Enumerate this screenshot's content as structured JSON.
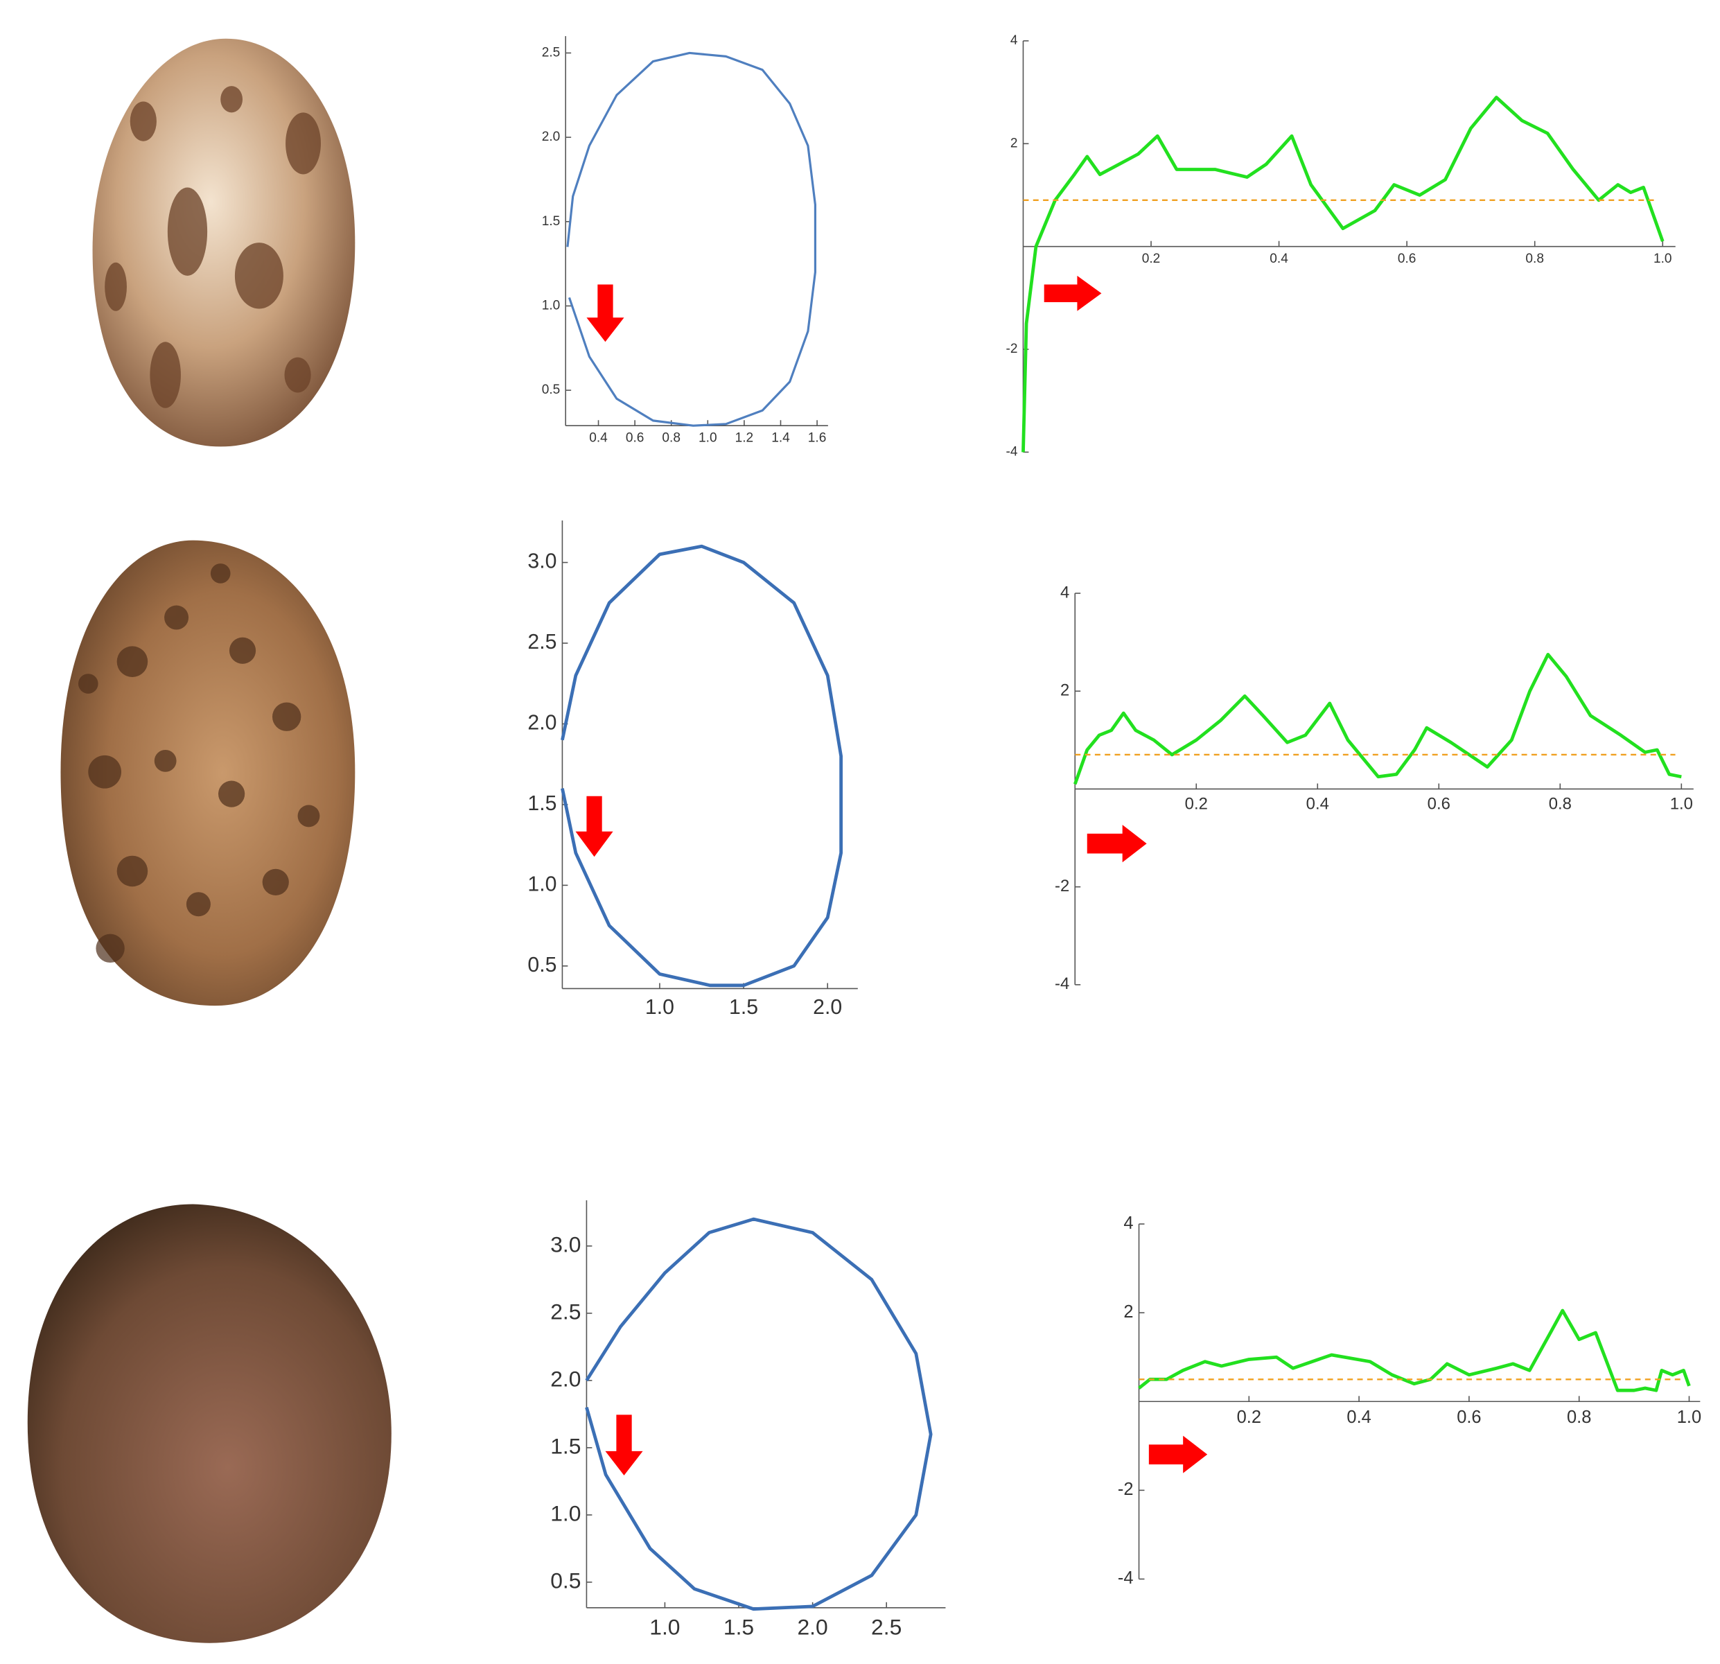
{
  "chart_data": [
    {
      "type": "line",
      "color": "#4f7fbf",
      "x": [
        0.24,
        0.35,
        0.5,
        0.7,
        0.92,
        1.1,
        1.3,
        1.45,
        1.55,
        1.59,
        1.59,
        1.55,
        1.45,
        1.3,
        1.1,
        0.9,
        0.7,
        0.5,
        0.35,
        0.26,
        0.23
      ],
      "values": [
        1.05,
        0.7,
        0.45,
        0.32,
        0.29,
        0.3,
        0.38,
        0.55,
        0.85,
        1.2,
        1.6,
        1.95,
        2.2,
        2.4,
        2.48,
        2.5,
        2.45,
        2.25,
        1.95,
        1.65,
        1.35
      ],
      "xlim": [
        0.22,
        1.66
      ],
      "ylim": [
        0.29,
        2.6
      ],
      "xticks": [
        0.4,
        0.6,
        0.8,
        {
          "value": 1.0,
          "label": "1.0"
        },
        1.2,
        1.4,
        1.6
      ],
      "yticks": [
        0.5,
        {
          "value": 1.0,
          "label": "1.0"
        },
        1.5,
        {
          "value": 2.0,
          "label": "2.0"
        },
        2.5
      ]
    },
    {
      "type": "line",
      "series": [
        {
          "color": "#22e01f",
          "x": [
            0,
            0.005,
            0.02,
            0.05,
            0.08,
            0.1,
            0.12,
            0.15,
            0.18,
            0.21,
            0.24,
            0.3,
            0.35,
            0.38,
            0.42,
            0.45,
            0.5,
            0.55,
            0.58,
            0.62,
            0.66,
            0.7,
            0.74,
            0.78,
            0.82,
            0.86,
            0.9,
            0.93,
            0.95,
            0.97,
            1.0
          ],
          "values": [
            -4,
            -1.5,
            0,
            0.9,
            1.4,
            1.75,
            1.4,
            1.6,
            1.8,
            2.15,
            1.5,
            1.5,
            1.35,
            1.6,
            2.15,
            1.2,
            0.35,
            0.7,
            1.2,
            1.0,
            1.3,
            2.3,
            2.9,
            2.45,
            2.2,
            1.5,
            0.9,
            1.2,
            1.05,
            1.15,
            0.1
          ]
        },
        {
          "color": "#f0a020",
          "linestyle": "dashed",
          "x": [
            0,
            0.99
          ],
          "values": [
            0.9,
            0.9
          ]
        }
      ],
      "xlim": [
        0,
        1.02
      ],
      "ylim": [
        -4,
        4
      ],
      "xticks": [
        0.2,
        0.4,
        0.6,
        0.8,
        {
          "value": 1.0,
          "label": "1.0"
        }
      ],
      "yticks": [
        -4,
        -2,
        2,
        4
      ]
    },
    {
      "type": "line",
      "color": "#3b6fb5",
      "x": [
        0.42,
        0.5,
        0.7,
        1.0,
        1.25,
        1.5,
        1.8,
        2.0,
        2.08,
        2.08,
        2.0,
        1.8,
        1.5,
        1.3,
        1.0,
        0.7,
        0.5,
        0.42
      ],
      "values": [
        1.9,
        2.3,
        2.75,
        3.05,
        3.1,
        3.0,
        2.75,
        2.3,
        1.8,
        1.2,
        0.8,
        0.5,
        0.38,
        0.38,
        0.45,
        0.75,
        1.2,
        1.6
      ],
      "xlim": [
        0.42,
        2.18
      ],
      "ylim": [
        0.36,
        3.26
      ],
      "xticks": [
        {
          "value": 1.0,
          "label": "1.0"
        },
        1.5,
        {
          "value": 2.0,
          "label": "2.0"
        }
      ],
      "yticks": [
        0.5,
        {
          "value": 1.0,
          "label": "1.0"
        },
        1.5,
        {
          "value": 2.0,
          "label": "2.0"
        },
        2.5,
        {
          "value": 3.0,
          "label": "3.0"
        }
      ]
    },
    {
      "type": "line",
      "series": [
        {
          "color": "#22e01f",
          "x": [
            0,
            0.02,
            0.04,
            0.06,
            0.08,
            0.1,
            0.13,
            0.16,
            0.2,
            0.24,
            0.28,
            0.31,
            0.35,
            0.38,
            0.42,
            0.45,
            0.5,
            0.53,
            0.56,
            0.58,
            0.62,
            0.68,
            0.72,
            0.75,
            0.78,
            0.81,
            0.85,
            0.9,
            0.94,
            0.96,
            0.98,
            1.0
          ],
          "values": [
            0.1,
            0.8,
            1.1,
            1.2,
            1.55,
            1.2,
            1.0,
            0.7,
            1.0,
            1.4,
            1.9,
            1.5,
            0.95,
            1.1,
            1.75,
            1.0,
            0.25,
            0.3,
            0.8,
            1.25,
            0.95,
            0.45,
            1.0,
            2.0,
            2.75,
            2.3,
            1.5,
            1.1,
            0.75,
            0.8,
            0.3,
            0.25
          ]
        },
        {
          "color": "#f0a020",
          "linestyle": "dashed",
          "x": [
            0,
            0.99
          ],
          "values": [
            0.7,
            0.7
          ]
        }
      ],
      "xlim": [
        0,
        1.02
      ],
      "ylim": [
        -4,
        4
      ],
      "xticks": [
        0.2,
        0.4,
        0.6,
        0.8,
        {
          "value": 1.0,
          "label": "1.0"
        }
      ],
      "yticks": [
        -4,
        -2,
        2,
        4
      ]
    },
    {
      "type": "line",
      "color": "#3b6fb5",
      "x": [
        0.47,
        0.7,
        1.0,
        1.3,
        1.6,
        2.0,
        2.4,
        2.7,
        2.8,
        2.7,
        2.4,
        2.0,
        1.6,
        1.2,
        0.9,
        0.6,
        0.47
      ],
      "values": [
        2.0,
        2.4,
        2.8,
        3.1,
        3.2,
        3.1,
        2.75,
        2.2,
        1.6,
        1.0,
        0.55,
        0.32,
        0.3,
        0.45,
        0.75,
        1.3,
        1.8
      ],
      "xlim": [
        0.47,
        2.9
      ],
      "ylim": [
        0.31,
        3.34
      ],
      "xticks": [
        {
          "value": 1.0,
          "label": "1.0"
        },
        1.5,
        {
          "value": 2.0,
          "label": "2.0"
        },
        2.5
      ],
      "yticks": [
        0.5,
        {
          "value": 1.0,
          "label": "1.0"
        },
        1.5,
        {
          "value": 2.0,
          "label": "2.0"
        },
        2.5,
        {
          "value": 3.0,
          "label": "3.0"
        }
      ]
    },
    {
      "type": "line",
      "series": [
        {
          "color": "#22e01f",
          "x": [
            0,
            0.02,
            0.05,
            0.08,
            0.12,
            0.15,
            0.2,
            0.25,
            0.28,
            0.35,
            0.42,
            0.46,
            0.5,
            0.53,
            0.56,
            0.6,
            0.65,
            0.68,
            0.71,
            0.75,
            0.77,
            0.8,
            0.83,
            0.85,
            0.87,
            0.9,
            0.92,
            0.94,
            0.95,
            0.97,
            0.99,
            1.0
          ],
          "values": [
            0.3,
            0.5,
            0.5,
            0.7,
            0.9,
            0.8,
            0.95,
            1.0,
            0.75,
            1.05,
            0.9,
            0.6,
            0.4,
            0.5,
            0.85,
            0.6,
            0.75,
            0.85,
            0.7,
            1.6,
            2.05,
            1.4,
            1.55,
            0.9,
            0.25,
            0.25,
            0.3,
            0.25,
            0.7,
            0.6,
            0.7,
            0.35
          ]
        },
        {
          "color": "#f0a020",
          "linestyle": "dashed",
          "x": [
            0,
            0.99
          ],
          "values": [
            0.5,
            0.5
          ]
        }
      ],
      "xlim": [
        0,
        1.02
      ],
      "ylim": [
        -4,
        4
      ],
      "xticks": [
        0.2,
        0.4,
        0.6,
        0.8,
        {
          "value": 1.0,
          "label": "1.0"
        }
      ],
      "yticks": [
        -4,
        -2,
        2,
        4
      ]
    }
  ]
}
